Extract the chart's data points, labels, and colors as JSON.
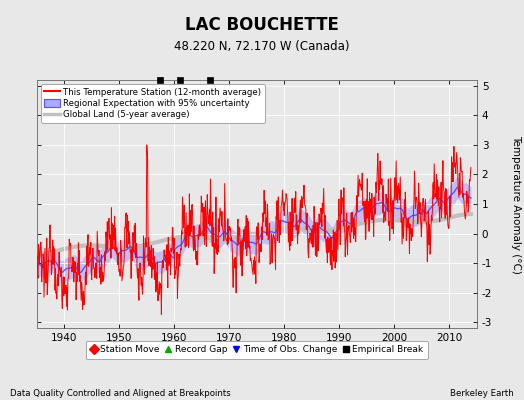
{
  "title": "LAC BOUCHETTE",
  "subtitle": "48.220 N, 72.170 W (Canada)",
  "xlabel_note": "Data Quality Controlled and Aligned at Breakpoints",
  "xlabel_right": "Berkeley Earth",
  "ylabel": "Temperature Anomaly (°C)",
  "xlim": [
    1935,
    2015
  ],
  "ylim": [
    -3.2,
    5.2
  ],
  "yticks": [
    -3,
    -2,
    -1,
    0,
    1,
    2,
    3,
    4,
    5
  ],
  "xticks": [
    1940,
    1950,
    1960,
    1970,
    1980,
    1990,
    2000,
    2010
  ],
  "bg_color": "#e8e8e8",
  "plot_bg": "#e8e8e8",
  "station_color": "#ff0000",
  "regional_color": "#5555ff",
  "regional_fill": "#aaaaff",
  "global_color": "#c0c0c0",
  "legend_items": [
    "This Temperature Station (12-month average)",
    "Regional Expectation with 95% uncertainty",
    "Global Land (5-year average)"
  ],
  "marker_items": [
    {
      "label": "Station Move",
      "color": "#ff0000",
      "marker": "D"
    },
    {
      "label": "Record Gap",
      "color": "#00aa00",
      "marker": "^"
    },
    {
      "label": "Time of Obs. Change",
      "color": "#0000ff",
      "marker": "v"
    },
    {
      "label": "Empirical Break",
      "color": "#000000",
      "marker": "s"
    }
  ],
  "empirical_break_years": [
    1957.5,
    1961.0,
    1966.5
  ],
  "seed": 12345
}
